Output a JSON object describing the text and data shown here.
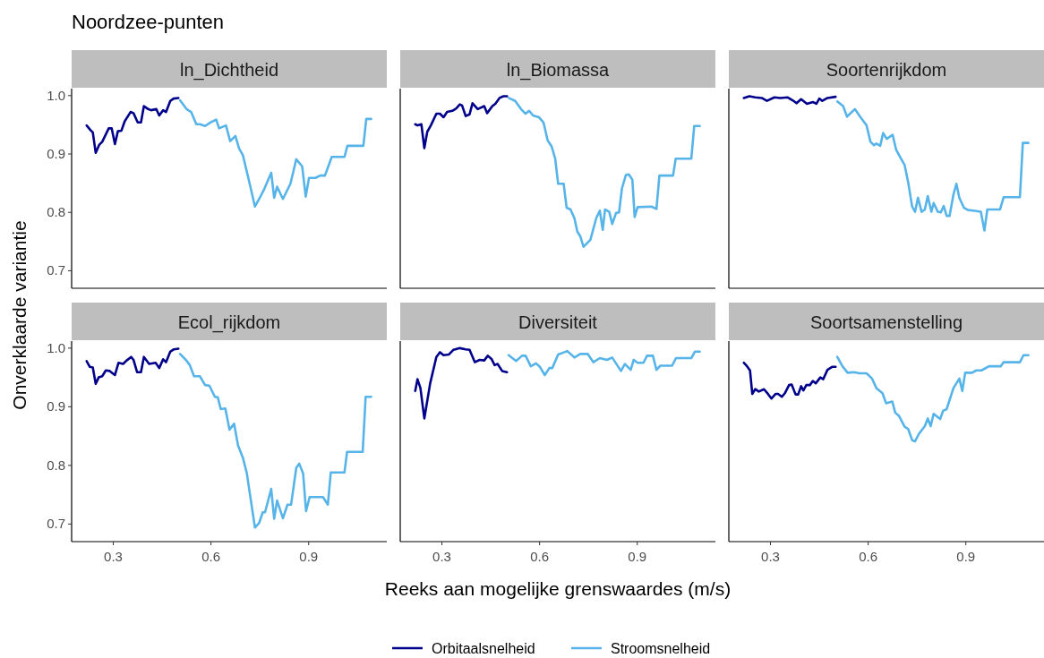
{
  "chart_data": [
    {
      "type": "line",
      "title": "ln_Dichtheid",
      "annotations": [
        "Noordzee-punten"
      ],
      "ylabel": "Onverklaarde variantie",
      "xlim": [
        0.172,
        1.14
      ],
      "xticks": [
        0.3,
        0.6,
        0.9
      ],
      "ylim": [
        0.67,
        1.012
      ],
      "yticks": [
        0.7,
        0.8,
        0.9,
        {
          "value": 1,
          "label": "1.0"
        }
      ],
      "tick_labels": "y",
      "grid": false,
      "line_style": "solid",
      "series": [
        {
          "color": "#00008b",
          "x": [
            0.218,
            0.23,
            0.237,
            0.246,
            0.257,
            0.266,
            0.286,
            0.295,
            0.305,
            0.314,
            0.325,
            0.335,
            0.353,
            0.362,
            0.375,
            0.385,
            0.394,
            0.407,
            0.416,
            0.432,
            0.441,
            0.453,
            0.462,
            0.475,
            0.485,
            0.5
          ],
          "values": [
            0.949,
            0.941,
            0.937,
            0.902,
            0.916,
            0.921,
            0.944,
            0.944,
            0.917,
            0.939,
            0.94,
            0.956,
            0.972,
            0.97,
            0.954,
            0.954,
            0.982,
            0.977,
            0.975,
            0.977,
            0.966,
            0.975,
            0.972,
            0.991,
            0.995,
            0.996
          ]
        },
        {
          "color": "#56b4e9",
          "x": [
            0.505,
            0.525,
            0.539,
            0.555,
            0.566,
            0.582,
            0.598,
            0.616,
            0.625,
            0.646,
            0.659,
            0.675,
            0.686,
            0.698,
            0.716,
            0.735,
            0.748,
            0.762,
            0.785,
            0.794,
            0.803,
            0.821,
            0.844,
            0.862,
            0.88,
            0.891,
            0.901,
            0.921,
            0.935,
            0.95,
            0.971,
            1.01,
            1.019,
            1.068,
            1.077,
            1.092
          ],
          "values": [
            0.992,
            0.977,
            0.972,
            0.951,
            0.951,
            0.948,
            0.954,
            0.959,
            0.944,
            0.949,
            0.922,
            0.931,
            0.91,
            0.898,
            0.856,
            0.81,
            0.823,
            0.838,
            0.868,
            0.825,
            0.844,
            0.823,
            0.849,
            0.891,
            0.879,
            0.827,
            0.859,
            0.859,
            0.863,
            0.863,
            0.895,
            0.895,
            0.914,
            0.914,
            0.96,
            0.96
          ]
        }
      ]
    },
    {
      "type": "line",
      "title": "ln_Biomassa",
      "xlim": [
        0.172,
        1.14
      ],
      "xticks": [
        0.3,
        0.6,
        0.9
      ],
      "ylim": [
        0.67,
        1.012
      ],
      "tick_labels": false,
      "grid": false,
      "line_style": "solid",
      "series": [
        {
          "color": "#00008b",
          "x": [
            0.218,
            0.225,
            0.237,
            0.246,
            0.255,
            0.266,
            0.283,
            0.294,
            0.305,
            0.316,
            0.332,
            0.344,
            0.355,
            0.362,
            0.373,
            0.385,
            0.394,
            0.41,
            0.43,
            0.439,
            0.455,
            0.464,
            0.477,
            0.489,
            0.5
          ],
          "values": [
            0.951,
            0.949,
            0.951,
            0.91,
            0.938,
            0.949,
            0.969,
            0.969,
            0.963,
            0.972,
            0.974,
            0.978,
            0.985,
            0.983,
            0.965,
            0.968,
            0.987,
            0.977,
            0.982,
            0.97,
            0.982,
            0.986,
            0.996,
            0.999,
            0.999
          ]
        },
        {
          "color": "#56b4e9",
          "x": [
            0.505,
            0.525,
            0.543,
            0.557,
            0.568,
            0.58,
            0.598,
            0.612,
            0.625,
            0.637,
            0.648,
            0.657,
            0.674,
            0.683,
            0.695,
            0.707,
            0.716,
            0.725,
            0.735,
            0.756,
            0.774,
            0.785,
            0.794,
            0.801,
            0.814,
            0.823,
            0.835,
            0.844,
            0.853,
            0.865,
            0.874,
            0.885,
            0.892,
            0.901,
            0.944,
            0.959,
            0.968,
            1.01,
            1.018,
            1.066,
            1.075,
            1.092
          ],
          "values": [
            0.996,
            0.991,
            0.977,
            0.969,
            0.974,
            0.966,
            0.963,
            0.954,
            0.923,
            0.913,
            0.892,
            0.849,
            0.849,
            0.808,
            0.805,
            0.79,
            0.767,
            0.759,
            0.741,
            0.753,
            0.79,
            0.803,
            0.77,
            0.805,
            0.801,
            0.78,
            0.799,
            0.8,
            0.841,
            0.864,
            0.865,
            0.856,
            0.792,
            0.809,
            0.81,
            0.806,
            0.863,
            0.863,
            0.892,
            0.892,
            0.948,
            0.948
          ]
        }
      ]
    },
    {
      "type": "line",
      "title": "Soortenrijkdom",
      "xlim": [
        0.172,
        1.14
      ],
      "xticks": [
        0.3,
        0.6,
        0.9
      ],
      "ylim": [
        0.67,
        1.012
      ],
      "tick_labels": false,
      "grid": false,
      "line_style": "solid",
      "series": [
        {
          "color": "#00008b",
          "x": [
            0.218,
            0.235,
            0.253,
            0.273,
            0.289,
            0.312,
            0.33,
            0.353,
            0.368,
            0.38,
            0.394,
            0.412,
            0.43,
            0.441,
            0.45,
            0.459,
            0.475,
            0.5
          ],
          "values": [
            0.996,
            0.999,
            0.997,
            0.996,
            0.991,
            0.997,
            0.996,
            0.997,
            0.992,
            0.987,
            0.994,
            0.986,
            0.989,
            0.986,
            0.995,
            0.991,
            0.996,
            0.998
          ]
        },
        {
          "color": "#56b4e9",
          "x": [
            0.505,
            0.523,
            0.535,
            0.559,
            0.575,
            0.595,
            0.607,
            0.618,
            0.625,
            0.637,
            0.646,
            0.657,
            0.675,
            0.686,
            0.698,
            0.712,
            0.723,
            0.735,
            0.744,
            0.753,
            0.764,
            0.774,
            0.783,
            0.794,
            0.801,
            0.814,
            0.823,
            0.832,
            0.841,
            0.85,
            0.862,
            0.871,
            0.88,
            0.894,
            0.907,
            0.923,
            0.946,
            0.957,
            0.966,
            1.005,
            1.016,
            1.066,
            1.075,
            1.092
          ],
          "values": [
            0.99,
            0.982,
            0.964,
            0.977,
            0.964,
            0.949,
            0.921,
            0.915,
            0.918,
            0.914,
            0.936,
            0.926,
            0.933,
            0.907,
            0.895,
            0.881,
            0.851,
            0.81,
            0.801,
            0.825,
            0.801,
            0.805,
            0.828,
            0.801,
            0.816,
            0.801,
            0.8,
            0.811,
            0.794,
            0.794,
            0.831,
            0.849,
            0.825,
            0.808,
            0.804,
            0.803,
            0.801,
            0.769,
            0.805,
            0.805,
            0.826,
            0.826,
            0.919,
            0.919
          ]
        }
      ]
    },
    {
      "type": "line",
      "title": "Ecol_rijkdom",
      "xlim": [
        0.172,
        1.14
      ],
      "xticks": [
        0.3,
        0.6,
        0.9
      ],
      "ylim": [
        0.67,
        1.012
      ],
      "yticks": [
        0.7,
        0.8,
        0.9,
        {
          "value": 1,
          "label": "1.0"
        }
      ],
      "grid": false,
      "line_style": "solid",
      "series": [
        {
          "color": "#00008b",
          "x": [
            0.218,
            0.228,
            0.237,
            0.246,
            0.255,
            0.266,
            0.277,
            0.289,
            0.305,
            0.316,
            0.33,
            0.341,
            0.355,
            0.362,
            0.373,
            0.385,
            0.394,
            0.41,
            0.43,
            0.441,
            0.453,
            0.462,
            0.475,
            0.486,
            0.5
          ],
          "values": [
            0.978,
            0.968,
            0.967,
            0.939,
            0.95,
            0.952,
            0.962,
            0.961,
            0.954,
            0.975,
            0.973,
            0.979,
            0.985,
            0.98,
            0.959,
            0.959,
            0.985,
            0.973,
            0.975,
            0.966,
            0.981,
            0.976,
            0.994,
            0.998,
            0.999
          ]
        },
        {
          "color": "#56b4e9",
          "x": [
            0.505,
            0.523,
            0.535,
            0.548,
            0.566,
            0.582,
            0.595,
            0.612,
            0.621,
            0.63,
            0.644,
            0.657,
            0.671,
            0.683,
            0.698,
            0.71,
            0.721,
            0.735,
            0.748,
            0.759,
            0.766,
            0.785,
            0.794,
            0.803,
            0.821,
            0.835,
            0.846,
            0.862,
            0.871,
            0.883,
            0.892,
            0.903,
            0.944,
            0.959,
            0.968,
            1.01,
            1.018,
            1.066,
            1.075,
            1.092
          ],
          "values": [
            0.99,
            0.98,
            0.971,
            0.952,
            0.952,
            0.937,
            0.936,
            0.917,
            0.916,
            0.896,
            0.897,
            0.861,
            0.871,
            0.834,
            0.813,
            0.787,
            0.746,
            0.694,
            0.702,
            0.72,
            0.72,
            0.76,
            0.709,
            0.74,
            0.71,
            0.733,
            0.733,
            0.796,
            0.803,
            0.786,
            0.722,
            0.746,
            0.746,
            0.733,
            0.788,
            0.788,
            0.823,
            0.823,
            0.917,
            0.917
          ]
        }
      ]
    },
    {
      "type": "line",
      "title": "Diversiteit",
      "xlabel": "Reeks aan mogelijke grenswaardes (m/s)",
      "legend": "bottom",
      "xlim": [
        0.172,
        1.14
      ],
      "xticks": [
        0.3,
        0.6,
        0.9
      ],
      "ylim": [
        0.67,
        1.012
      ],
      "tick_labels": "x",
      "grid": false,
      "line_style": "solid",
      "series": [
        {
          "name": "Orbitaalsnelheid",
          "color": "#00008b",
          "x": [
            0.218,
            0.225,
            0.234,
            0.246,
            0.264,
            0.283,
            0.294,
            0.305,
            0.321,
            0.335,
            0.355,
            0.373,
            0.385,
            0.401,
            0.416,
            0.43,
            0.441,
            0.453,
            0.462,
            0.471,
            0.485,
            0.5
          ],
          "values": [
            0.927,
            0.947,
            0.932,
            0.88,
            0.94,
            0.985,
            0.993,
            0.988,
            0.989,
            0.997,
            1,
            0.998,
            0.997,
            0.976,
            0.98,
            0.979,
            0.987,
            0.981,
            0.971,
            0.973,
            0.961,
            0.959
          ]
        },
        {
          "name": "Stroomsnelheid",
          "color": "#56b4e9",
          "x": [
            0.505,
            0.528,
            0.546,
            0.557,
            0.573,
            0.589,
            0.601,
            0.616,
            0.63,
            0.639,
            0.657,
            0.671,
            0.685,
            0.707,
            0.725,
            0.748,
            0.765,
            0.785,
            0.807,
            0.823,
            0.85,
            0.862,
            0.88,
            0.889,
            0.901,
            0.919,
            0.93,
            0.948,
            0.959,
            0.971,
            1.007,
            1.019,
            1.066,
            1.077,
            1.092
          ],
          "values": [
            0.988,
            0.978,
            0.987,
            0.987,
            0.969,
            0.974,
            0.968,
            0.954,
            0.966,
            0.966,
            0.989,
            0.992,
            0.995,
            0.984,
            0.99,
            0.99,
            0.976,
            0.983,
            0.98,
            0.984,
            0.961,
            0.973,
            0.963,
            0.98,
            0.975,
            0.975,
            0.987,
            0.987,
            0.963,
            0.97,
            0.97,
            0.983,
            0.983,
            0.994,
            0.994
          ]
        }
      ]
    },
    {
      "type": "line",
      "title": "Soortsamenstelling",
      "xlim": [
        0.172,
        1.14
      ],
      "xticks": [
        0.3,
        0.6,
        0.9
      ],
      "ylim": [
        0.67,
        1.012
      ],
      "tick_labels": "x",
      "grid": false,
      "line_style": "solid",
      "series": [
        {
          "color": "#00008b",
          "x": [
            0.218,
            0.228,
            0.237,
            0.244,
            0.253,
            0.264,
            0.28,
            0.292,
            0.303,
            0.316,
            0.323,
            0.335,
            0.344,
            0.357,
            0.365,
            0.377,
            0.385,
            0.394,
            0.401,
            0.41,
            0.421,
            0.43,
            0.439,
            0.453,
            0.462,
            0.475,
            0.489,
            0.5
          ],
          "values": [
            0.975,
            0.969,
            0.962,
            0.922,
            0.93,
            0.926,
            0.93,
            0.922,
            0.914,
            0.922,
            0.922,
            0.917,
            0.923,
            0.937,
            0.938,
            0.921,
            0.921,
            0.935,
            0.928,
            0.937,
            0.937,
            0.944,
            0.94,
            0.95,
            0.947,
            0.963,
            0.968,
            0.968
          ]
        },
        {
          "color": "#56b4e9",
          "x": [
            0.505,
            0.521,
            0.537,
            0.557,
            0.573,
            0.595,
            0.612,
            0.625,
            0.644,
            0.655,
            0.674,
            0.683,
            0.695,
            0.712,
            0.723,
            0.735,
            0.744,
            0.756,
            0.774,
            0.783,
            0.792,
            0.801,
            0.821,
            0.83,
            0.841,
            0.862,
            0.88,
            0.889,
            0.898,
            0.919,
            0.932,
            0.948,
            0.971,
            1.007,
            1.016,
            1.066,
            1.077,
            1.092
          ],
          "values": [
            0.985,
            0.969,
            0.958,
            0.959,
            0.957,
            0.957,
            0.948,
            0.932,
            0.923,
            0.906,
            0.909,
            0.89,
            0.884,
            0.866,
            0.862,
            0.843,
            0.841,
            0.854,
            0.867,
            0.88,
            0.867,
            0.888,
            0.879,
            0.893,
            0.896,
            0.932,
            0.948,
            0.927,
            0.958,
            0.958,
            0.962,
            0.962,
            0.969,
            0.969,
            0.976,
            0.976,
            0.988,
            0.988
          ]
        }
      ]
    }
  ]
}
